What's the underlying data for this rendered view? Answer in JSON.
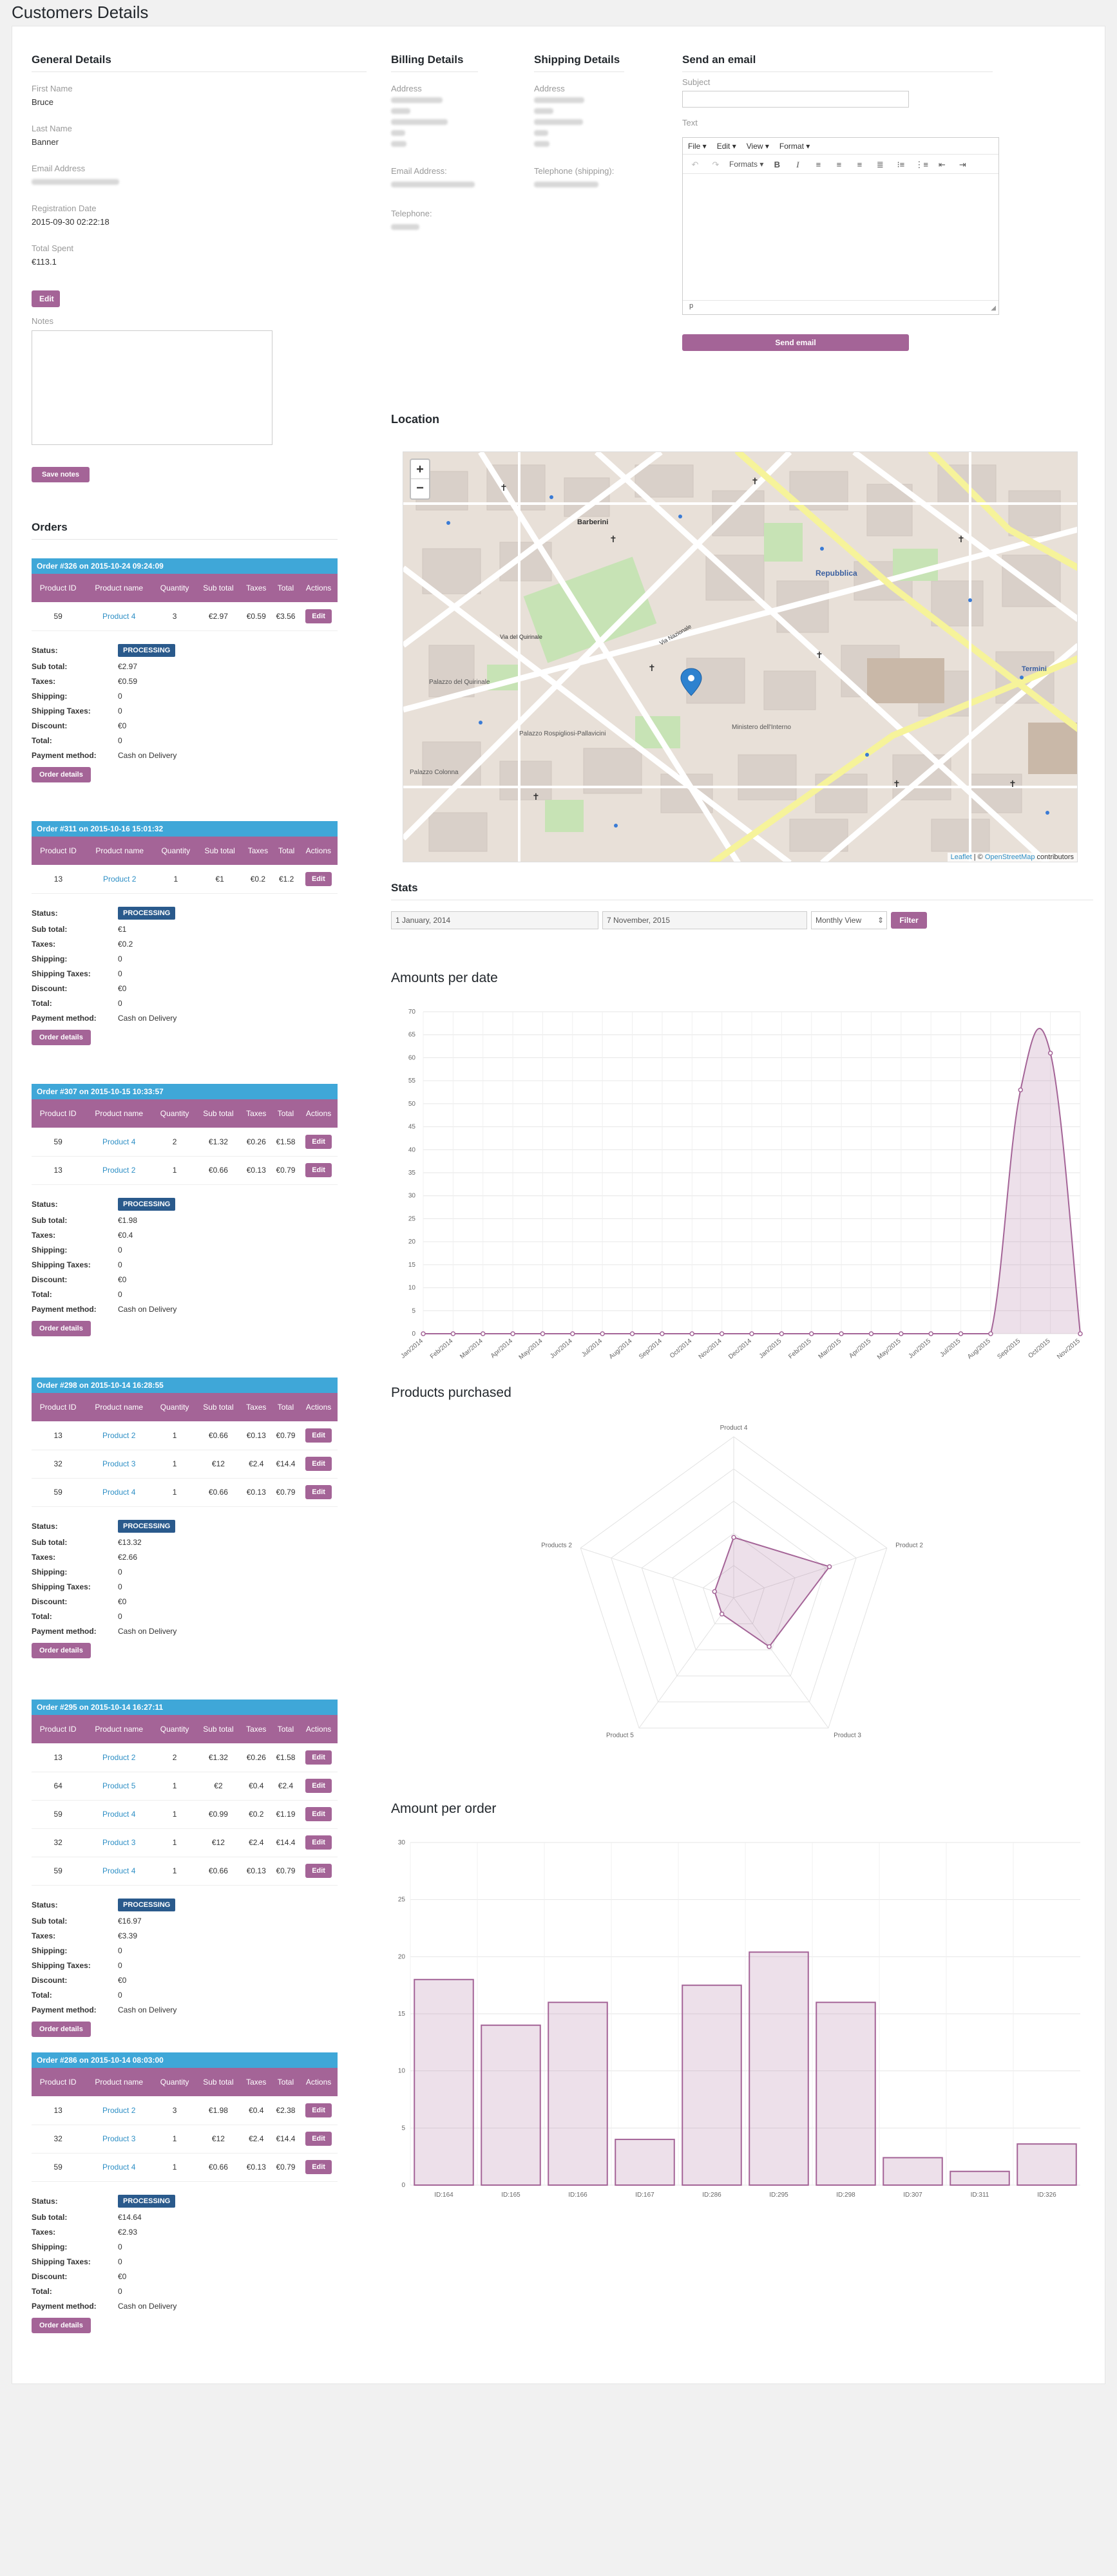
{
  "page": {
    "title": "Customers Details"
  },
  "general": {
    "heading": "General Details",
    "first_name_label": "First Name",
    "first_name": "Bruce",
    "last_name_label": "Last Name",
    "last_name": "Banner",
    "email_label": "Email Address",
    "registration_label": "Registration Date",
    "registration": "2015-09-30 02:22:18",
    "total_spent_label": "Total Spent",
    "total_spent": "€113.1",
    "edit_label": "Edit",
    "notes_label": "Notes",
    "save_notes_label": "Save notes"
  },
  "billing": {
    "heading": "Billing Details",
    "address_label": "Address",
    "email_label": "Email Address:",
    "telephone_label": "Telephone:"
  },
  "shipping": {
    "heading": "Shipping Details",
    "address_label": "Address",
    "telephone_label": "Telephone (shipping):"
  },
  "email": {
    "heading": "Send an email",
    "subject_label": "Subject",
    "text_label": "Text",
    "menu": [
      "File",
      "Edit",
      "View",
      "Format"
    ],
    "formats_label": "Formats",
    "status_path": "p",
    "send_label": "Send email"
  },
  "location": {
    "heading": "Location",
    "zoom_in": "+",
    "zoom_out": "−",
    "attribution_leaflet": "Leaflet",
    "attribution_sep": " | © ",
    "attribution_osm": "OpenStreetMap",
    "attribution_tail": " contributors",
    "places": [
      "Barberini",
      "Repubblica",
      "Via del Quirinale",
      "Palazzo del Quirinale",
      "Palazzo Rospigliosi-Pallavicini",
      "Ministero dell'Interno",
      "Palazzo Colonna",
      "Termini",
      "Via Nazionale"
    ]
  },
  "stats": {
    "heading": "Stats",
    "from": "1 January, 2014",
    "to": "7 November, 2015",
    "view": "Monthly View",
    "filter_label": "Filter"
  },
  "orders": {
    "heading": "Orders",
    "columns": [
      "Product ID",
      "Product name",
      "Quantity",
      "Sub total",
      "Taxes",
      "Total",
      "Actions"
    ],
    "row_action": "Edit",
    "status_label": "Status:",
    "labels": [
      "Sub total:",
      "Taxes:",
      "Shipping:",
      "Shipping Taxes:",
      "Discount:",
      "Total:",
      "Payment method:"
    ],
    "details_label": "Order details",
    "list": [
      {
        "title": "Order #326 on 2015-10-24 09:24:09",
        "rows": [
          [
            "59",
            "Product 4",
            "3",
            "€2.97",
            "€0.59",
            "€3.56"
          ]
        ],
        "status": "PROCESSING",
        "values": [
          "€2.97",
          "€0.59",
          "0",
          "0",
          "€0",
          "0",
          "Cash on Delivery"
        ]
      },
      {
        "title": "Order #311 on 2015-10-16 15:01:32",
        "rows": [
          [
            "13",
            "Product 2",
            "1",
            "€1",
            "€0.2",
            "€1.2"
          ]
        ],
        "status": "PROCESSING",
        "values": [
          "€1",
          "€0.2",
          "0",
          "0",
          "€0",
          "0",
          "Cash on Delivery"
        ]
      },
      {
        "title": "Order #307 on 2015-10-15 10:33:57",
        "rows": [
          [
            "59",
            "Product 4",
            "2",
            "€1.32",
            "€0.26",
            "€1.58"
          ],
          [
            "13",
            "Product 2",
            "1",
            "€0.66",
            "€0.13",
            "€0.79"
          ]
        ],
        "status": "PROCESSING",
        "values": [
          "€1.98",
          "€0.4",
          "0",
          "0",
          "€0",
          "0",
          "Cash on Delivery"
        ]
      },
      {
        "title": "Order #298 on 2015-10-14 16:28:55",
        "rows": [
          [
            "13",
            "Product 2",
            "1",
            "€0.66",
            "€0.13",
            "€0.79"
          ],
          [
            "32",
            "Product 3",
            "1",
            "€12",
            "€2.4",
            "€14.4"
          ],
          [
            "59",
            "Product 4",
            "1",
            "€0.66",
            "€0.13",
            "€0.79"
          ]
        ],
        "status": "PROCESSING",
        "values": [
          "€13.32",
          "€2.66",
          "0",
          "0",
          "€0",
          "0",
          "Cash on Delivery"
        ]
      },
      {
        "title": "Order #295 on 2015-10-14 16:27:11",
        "rows": [
          [
            "13",
            "Product 2",
            "2",
            "€1.32",
            "€0.26",
            "€1.58"
          ],
          [
            "64",
            "Product 5",
            "1",
            "€2",
            "€0.4",
            "€2.4"
          ],
          [
            "59",
            "Product 4",
            "1",
            "€0.99",
            "€0.2",
            "€1.19"
          ],
          [
            "32",
            "Product 3",
            "1",
            "€12",
            "€2.4",
            "€14.4"
          ],
          [
            "59",
            "Product 4",
            "1",
            "€0.66",
            "€0.13",
            "€0.79"
          ]
        ],
        "status": "PROCESSING",
        "values": [
          "€16.97",
          "€3.39",
          "0",
          "0",
          "€0",
          "0",
          "Cash on Delivery"
        ]
      },
      {
        "title": "Order #286 on 2015-10-14 08:03:00",
        "rows": [
          [
            "13",
            "Product 2",
            "3",
            "€1.98",
            "€0.4",
            "€2.38"
          ],
          [
            "32",
            "Product 3",
            "1",
            "€12",
            "€2.4",
            "€14.4"
          ],
          [
            "59",
            "Product 4",
            "1",
            "€0.66",
            "€0.13",
            "€0.79"
          ]
        ],
        "status": "PROCESSING",
        "values": [
          "€14.64",
          "€2.93",
          "0",
          "0",
          "€0",
          "0",
          "Cash on Delivery"
        ]
      }
    ]
  },
  "chart_data": [
    {
      "type": "area",
      "title": "Amounts per date",
      "x": [
        "Jan/2014",
        "Feb/2014",
        "Mar/2014",
        "Apr/2014",
        "May/2014",
        "Jun/2014",
        "Jul/2014",
        "Aug/2014",
        "Sep/2014",
        "Oct/2014",
        "Nov/2014",
        "Dec/2014",
        "Jan/2015",
        "Feb/2015",
        "Mar/2015",
        "Apr/2015",
        "May/2015",
        "Jun/2015",
        "Jul/2015",
        "Aug/2015",
        "Sep/2015",
        "Oct/2015",
        "Nov/2015"
      ],
      "values": [
        0,
        0,
        0,
        0,
        0,
        0,
        0,
        0,
        0,
        0,
        0,
        0,
        0,
        0,
        0,
        0,
        0,
        0,
        0,
        0,
        53,
        61,
        0
      ],
      "ylim": [
        0,
        70
      ],
      "yticks": [
        0,
        5,
        10,
        15,
        20,
        25,
        30,
        35,
        40,
        45,
        50,
        55,
        60,
        65,
        70
      ],
      "grid": true,
      "color": "#a46497"
    },
    {
      "type": "radar",
      "title": "Products purchased",
      "axes": [
        "Product 4",
        "Product 2",
        "Product 3",
        "Product 5",
        "Products 2"
      ],
      "values": [
        3,
        5,
        3,
        1,
        1
      ],
      "rmax": 8,
      "color": "#a46497"
    },
    {
      "type": "bar",
      "title": "Amount per order",
      "categories": [
        "ID:164",
        "ID:165",
        "ID:166",
        "ID:167",
        "ID:286",
        "ID:295",
        "ID:298",
        "ID:307",
        "ID:311",
        "ID:326"
      ],
      "values": [
        18,
        14,
        16,
        4,
        17.5,
        20.4,
        16,
        2.4,
        1.2,
        3.6
      ],
      "ylim": [
        0,
        30
      ],
      "yticks": [
        0,
        5,
        10,
        15,
        20,
        25,
        30
      ],
      "color": "#a46497"
    }
  ]
}
